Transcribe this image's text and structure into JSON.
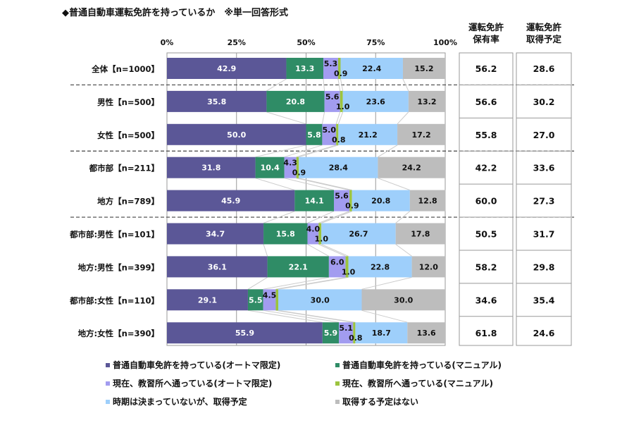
{
  "chart_data": {
    "type": "bar",
    "orientation": "horizontal",
    "stacked": true,
    "title": "◆普通自動車運転免許を持っているか　※単一回答形式",
    "xlim": [
      0,
      100
    ],
    "x_ticks": [
      "0%",
      "25%",
      "50%",
      "75%",
      "100%"
    ],
    "grid": true,
    "legend_position": "bottom",
    "categories": [
      "全体【n=1000】",
      "男性【n=500】",
      "女性【n=500】",
      "都市部【n=211】",
      "地方【n=789】",
      "都市部:男性【n=101】",
      "地方:男性【n=399】",
      "都市部:女性【n=110】",
      "地方:女性【n=390】"
    ],
    "series": [
      {
        "name": "普通自動車免許を持っている(オートマ限定)",
        "color": "#5b5797",
        "values": [
          42.9,
          35.8,
          50.0,
          31.8,
          45.9,
          34.7,
          36.1,
          29.1,
          55.9
        ]
      },
      {
        "name": "普通自動車免許を持っている(マニュアル)",
        "color": "#2f8c66",
        "values": [
          13.3,
          20.8,
          5.8,
          10.4,
          14.1,
          15.8,
          22.1,
          5.5,
          5.9
        ]
      },
      {
        "name": "現在、教習所へ通っている(オートマ限定)",
        "color": "#a29cf0",
        "values": [
          5.3,
          5.6,
          5.0,
          4.3,
          5.6,
          4.0,
          6.0,
          4.5,
          5.1
        ]
      },
      {
        "name": "現在、教習所へ通っている(マニュアル)",
        "color": "#9cc43e",
        "values": [
          0.9,
          1.0,
          0.8,
          0.9,
          0.9,
          1.0,
          1.0,
          null,
          0.8
        ]
      },
      {
        "name": "時期は決まっていないが、取得予定",
        "color": "#9ecffb",
        "values": [
          22.4,
          23.6,
          21.2,
          28.4,
          20.8,
          26.7,
          22.8,
          30.0,
          18.7
        ]
      },
      {
        "name": "取得する予定はない",
        "color": "#bdbdbd",
        "values": [
          15.2,
          13.2,
          17.2,
          24.2,
          12.8,
          17.8,
          12.0,
          30.0,
          13.6
        ]
      }
    ],
    "table": {
      "headers": [
        [
          "運転免許",
          "保有率"
        ],
        [
          "運転免許",
          "取得予定"
        ]
      ],
      "hold_rate": [
        "56.2",
        "56.6",
        "55.8",
        "42.2",
        "60.0",
        "50.5",
        "58.2",
        "34.6",
        "61.8"
      ],
      "plan_rate": [
        "28.6",
        "30.2",
        "27.0",
        "33.6",
        "27.3",
        "31.7",
        "29.8",
        "35.4",
        "24.6"
      ]
    },
    "group_separators_after": [
      0,
      2,
      4
    ]
  }
}
